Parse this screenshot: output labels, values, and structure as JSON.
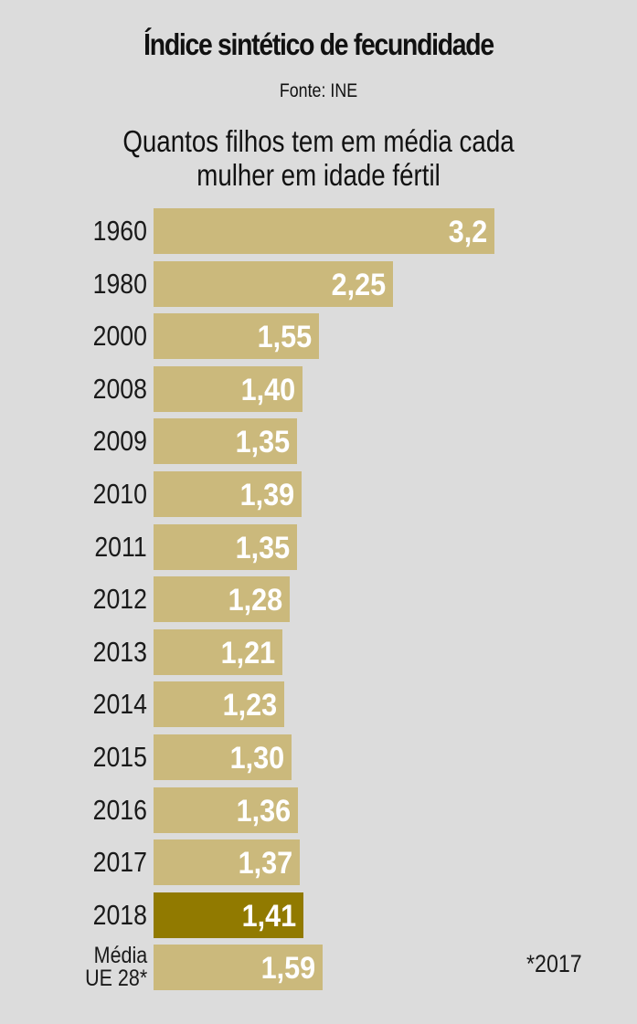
{
  "header": {
    "title": "Índice sintético de fecundidade",
    "source": "Fonte: INE",
    "subtitle_line1": "Quantos filhos tem em média cada",
    "subtitle_line2": "mulher em idade fértil"
  },
  "footnote": "*2017",
  "colors": {
    "background": "#dcdcdc",
    "bar": "#cbb97c",
    "bar_highlight": "#917a00",
    "value_text": "#ffffff"
  },
  "rows": [
    {
      "label": "1960",
      "value": "3,2"
    },
    {
      "label": "1980",
      "value": "2,25"
    },
    {
      "label": "2000",
      "value": "1,55"
    },
    {
      "label": "2008",
      "value": "1,40"
    },
    {
      "label": "2009",
      "value": "1,35"
    },
    {
      "label": "2010",
      "value": "1,39"
    },
    {
      "label": "2011",
      "value": "1,35"
    },
    {
      "label": "2012",
      "value": "1,28"
    },
    {
      "label": "2013",
      "value": "1,21"
    },
    {
      "label": "2014",
      "value": "1,23"
    },
    {
      "label": "2015",
      "value": "1,30"
    },
    {
      "label": "2016",
      "value": "1,36"
    },
    {
      "label": "2017",
      "value": "1,37"
    },
    {
      "label": "2018",
      "value": "1,41"
    },
    {
      "label_line1": "Média",
      "label_line2": "UE 28*",
      "value": "1,59"
    }
  ],
  "chart_data": {
    "type": "bar",
    "orientation": "horizontal",
    "title": "Índice sintético de fecundidade",
    "subtitle": "Quantos filhos tem em média cada mulher em idade fértil",
    "source": "Fonte: INE",
    "categories": [
      "1960",
      "1980",
      "2000",
      "2008",
      "2009",
      "2010",
      "2011",
      "2012",
      "2013",
      "2014",
      "2015",
      "2016",
      "2017",
      "2018",
      "Média UE 28*"
    ],
    "values": [
      3.2,
      2.25,
      1.55,
      1.4,
      1.35,
      1.39,
      1.35,
      1.28,
      1.21,
      1.23,
      1.3,
      1.36,
      1.37,
      1.41,
      1.59
    ],
    "highlighted_category": "2018",
    "annotations": [
      "*2017"
    ],
    "xlabel": "",
    "ylabel": "",
    "grid": false,
    "legend": null,
    "data_labels": true
  }
}
